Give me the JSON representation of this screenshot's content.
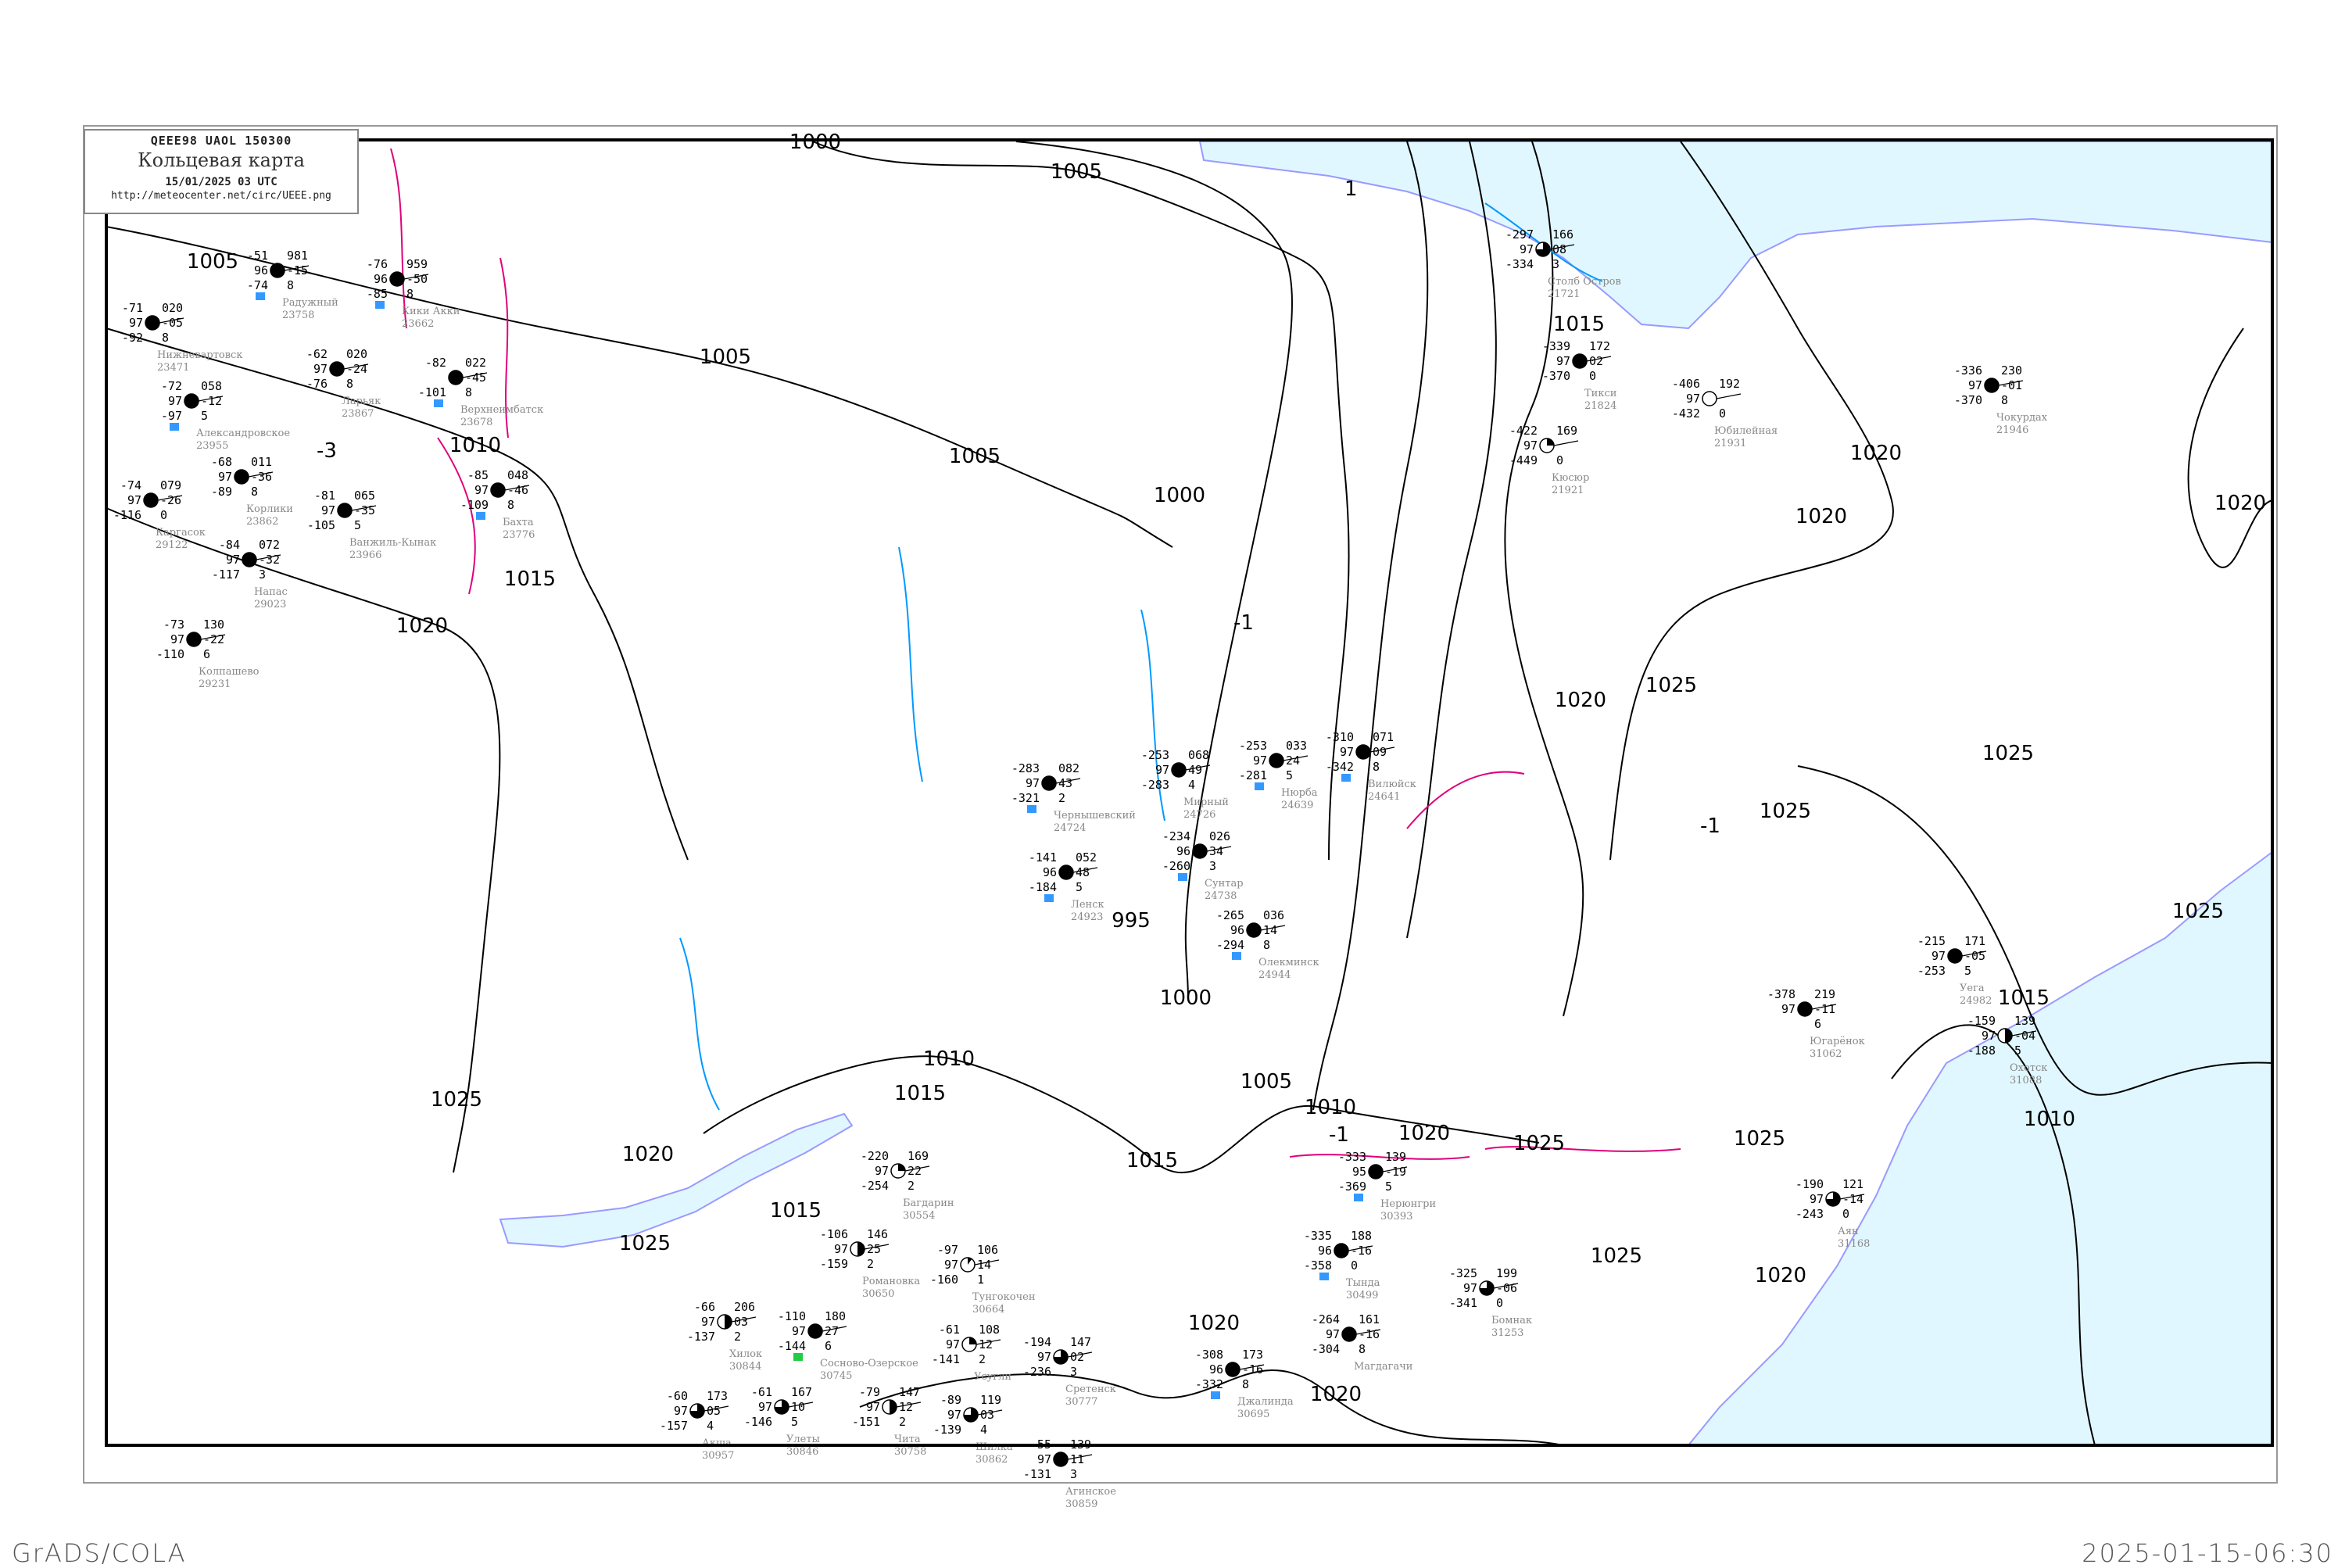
{
  "header": {
    "code_line": "QEEE98  UAOL  150300",
    "title": "Кольцевая карта",
    "datetime": "15/01/2025 03 UTC",
    "url": "http://meteocenter.net/circ/UEEE.png"
  },
  "footer": {
    "left": "GrADS/COLA",
    "right": "2025-01-15-06:30"
  },
  "colors": {
    "sea": "#e0f7ff",
    "coast": "#9a9aff",
    "isobar": "#000000",
    "isotherm_negative": "#e0007a",
    "isotherm_cold": "#0099ff",
    "station_marker": "#3399ff",
    "frame": "#000000"
  },
  "isobar_labels": [
    "1000",
    "1005",
    "1005",
    "1005",
    "1005",
    "1000",
    "1010",
    "1015",
    "1020",
    "995",
    "1000",
    "1010",
    "1015",
    "1005",
    "1010",
    "1015",
    "1020",
    "1025",
    "1025",
    "1025",
    "1020",
    "1025",
    "1025",
    "1020",
    "1015",
    "1020",
    "1025",
    "1025",
    "1025",
    "1020",
    "1020",
    "1020",
    "1015",
    "1010",
    "1025",
    "1015",
    "1020",
    "1020"
  ],
  "isotherm_labels": [
    "-1",
    "-3",
    "-1",
    "-1",
    "1"
  ],
  "stations": [
    {
      "name": "Чернышевский",
      "index": "24724",
      "t": "-283",
      "vis": "97",
      "td": "-321",
      "p": "082",
      "dp": "43",
      "w": "2",
      "cover": 1,
      "marker": true
    },
    {
      "name": "Мирный",
      "index": "24726",
      "t": "-253",
      "vis": "97",
      "td": "-283",
      "p": "068",
      "dp": "49",
      "w": "4",
      "cover": 1,
      "marker": false
    },
    {
      "name": "Сунтар",
      "index": "24738",
      "t": "-234",
      "vis": "96",
      "td": "-260",
      "p": "026",
      "dp": "34",
      "w": "3",
      "cover": 1,
      "marker": true
    },
    {
      "name": "Нюрба",
      "index": "24639",
      "t": "-253",
      "vis": "97",
      "td": "-281",
      "p": "033",
      "dp": "24",
      "w": "5",
      "cover": 1,
      "marker": true
    },
    {
      "name": "Вилюйск",
      "index": "24641",
      "t": "-310",
      "vis": "97",
      "td": "-342",
      "p": "071",
      "dp": "09",
      "w": "8",
      "cover": 1,
      "marker": true
    },
    {
      "name": "Ленск",
      "index": "24923",
      "t": "-141",
      "vis": "96",
      "td": "-184",
      "p": "052",
      "dp": "48",
      "w": "5",
      "cover": 1,
      "marker": true
    },
    {
      "name": "Олекминск",
      "index": "24944",
      "t": "-265",
      "vis": "96",
      "td": "-294",
      "p": "036",
      "dp": "14",
      "w": "8",
      "cover": 1,
      "marker": true
    },
    {
      "name": "Столб Остров",
      "index": "21721",
      "t": "-297",
      "vis": "97",
      "td": "-334",
      "p": "166",
      "dp": "08",
      "w": "3",
      "cover": 0.75,
      "marker": false
    },
    {
      "name": "Тикси",
      "index": "21824",
      "t": "-339",
      "vis": "97",
      "td": "-370",
      "p": "172",
      "dp": "02",
      "w": "0",
      "cover": 1,
      "marker": false
    },
    {
      "name": "Кюсюр",
      "index": "21921",
      "t": "-422",
      "vis": "97",
      "td": "-449",
      "p": "169",
      "dp": "",
      "w": "0",
      "cover": 0.25,
      "marker": false
    },
    {
      "name": "Юбилейная",
      "index": "21931",
      "t": "-406",
      "vis": "97",
      "td": "-432",
      "p": "192",
      "dp": "",
      "w": "0",
      "cover": 0,
      "marker": false
    },
    {
      "name": "Чокурдах",
      "index": "21946",
      "t": "-336",
      "vis": "97",
      "td": "-370",
      "p": "230",
      "dp": "-01",
      "w": "8",
      "cover": 1,
      "marker": false
    },
    {
      "name": "Нерюнгри",
      "index": "30393",
      "t": "-333",
      "vis": "95",
      "td": "-369",
      "p": "139",
      "dp": "-19",
      "w": "5",
      "cover": 1,
      "marker": true
    },
    {
      "name": "Тында",
      "index": "30499",
      "t": "-335",
      "vis": "96",
      "td": "-358",
      "p": "188",
      "dp": "-16",
      "w": "0",
      "cover": 1,
      "marker": true
    },
    {
      "name": "Бомнак",
      "index": "31253",
      "t": "-325",
      "vis": "97",
      "td": "-341",
      "p": "199",
      "dp": "-06",
      "w": "0",
      "cover": 0.75,
      "marker": false
    },
    {
      "name": "Магдагачи",
      "index": "",
      "t": "-264",
      "vis": "97",
      "td": "-304",
      "p": "161",
      "dp": "-16",
      "w": "8",
      "cover": 1,
      "marker": false
    },
    {
      "name": "Джалинда",
      "index": "30695",
      "t": "-308",
      "vis": "96",
      "td": "-332",
      "p": "173",
      "dp": "-16",
      "w": "8",
      "cover": 1,
      "marker": true
    },
    {
      "name": "Уега",
      "index": "24982",
      "t": "-215",
      "vis": "97",
      "td": "-253",
      "p": "171",
      "dp": "-05",
      "w": "5",
      "cover": 1,
      "marker": false
    },
    {
      "name": "Охотск",
      "index": "31088",
      "t": "-159",
      "vis": "97",
      "td": "-188",
      "p": "139",
      "dp": "-04",
      "w": "5",
      "cover": 0.5,
      "marker": false
    },
    {
      "name": "Югарёнок",
      "index": "31062",
      "t": "-378",
      "vis": "97",
      "td": "",
      "p": "219",
      "dp": "-11",
      "w": "6",
      "cover": 1,
      "marker": false
    },
    {
      "name": "Аян",
      "index": "31168",
      "t": "-190",
      "vis": "97",
      "td": "-243",
      "p": "121",
      "dp": "-14",
      "w": "0",
      "cover": 0.75,
      "marker": false
    },
    {
      "name": "Радужный",
      "index": "23758",
      "t": "-51",
      "vis": "96",
      "td": "-74",
      "p": "981",
      "dp": "-15",
      "w": "8",
      "cover": 1,
      "marker": true
    },
    {
      "name": "Нижневартовск",
      "index": "23471",
      "t": "-71",
      "vis": "97",
      "td": "-92",
      "p": "020",
      "dp": "-05",
      "w": "8",
      "cover": 1,
      "marker": false
    },
    {
      "name": "Александровское",
      "index": "23955",
      "t": "-72",
      "vis": "97",
      "td": "-97",
      "p": "058",
      "dp": "-12",
      "w": "5",
      "cover": 1,
      "marker": true
    },
    {
      "name": "Ларьяк",
      "index": "23867",
      "t": "-62",
      "vis": "97",
      "td": "-76",
      "p": "020",
      "dp": "-24",
      "w": "8",
      "cover": 1,
      "marker": false
    },
    {
      "name": "Корлики",
      "index": "23862",
      "t": "-68",
      "vis": "97",
      "td": "-89",
      "p": "011",
      "dp": "-36",
      "w": "8",
      "cover": 1,
      "marker": false
    },
    {
      "name": "Кики Акки",
      "index": "23662",
      "t": "-76",
      "vis": "96",
      "td": "-85",
      "p": "959",
      "dp": "-50",
      "w": "8",
      "cover": 1,
      "marker": true
    },
    {
      "name": "Каргасок",
      "index": "29122",
      "t": "-74",
      "vis": "97",
      "td": "-116",
      "p": "079",
      "dp": "-26",
      "w": "0",
      "cover": 1,
      "marker": false
    },
    {
      "name": "Напас",
      "index": "29023",
      "t": "-84",
      "vis": "97",
      "td": "-117",
      "p": "072",
      "dp": "-32",
      "w": "3",
      "cover": 1,
      "marker": false
    },
    {
      "name": "Ванжиль-Кынак",
      "index": "23966",
      "t": "-81",
      "vis": "97",
      "td": "-105",
      "p": "065",
      "dp": "-35",
      "w": "5",
      "cover": 1,
      "marker": false
    },
    {
      "name": "Колпашево",
      "index": "29231",
      "t": "-73",
      "vis": "97",
      "td": "-110",
      "p": "130",
      "dp": "-22",
      "w": "6",
      "cover": 1,
      "marker": false
    },
    {
      "name": "Бахта",
      "index": "23776",
      "t": "-85",
      "vis": "97",
      "td": "-109",
      "p": "048",
      "dp": "-46",
      "w": "8",
      "cover": 1,
      "marker": true
    },
    {
      "name": "Верхнеимбатск",
      "index": "23678",
      "t": "-82",
      "vis": "",
      "td": "-101",
      "p": "022",
      "dp": "-45",
      "w": "8",
      "cover": 1,
      "marker": true
    },
    {
      "name": "Романовка",
      "index": "30650",
      "t": "-106",
      "vis": "97",
      "td": "-159",
      "p": "146",
      "dp": "25",
      "w": "2",
      "cover": 0.5,
      "marker": false
    },
    {
      "name": "Сосново-Озерское",
      "index": "30745",
      "t": "-110",
      "vis": "97",
      "td": "-144",
      "p": "180",
      "dp": "27",
      "w": "6",
      "cover": 1,
      "marker": false,
      "green": true
    },
    {
      "name": "Багдарин",
      "index": "30554",
      "t": "-220",
      "vis": "97",
      "td": "-254",
      "p": "169",
      "dp": "22",
      "w": "2",
      "cover": 0.25,
      "marker": false
    },
    {
      "name": "Тунгокочен",
      "index": "30664",
      "t": "-97",
      "vis": "97",
      "td": "-160",
      "p": "106",
      "dp": "14",
      "w": "1",
      "cover": 0.1,
      "marker": false
    },
    {
      "name": "Чита",
      "index": "30758",
      "t": "-79",
      "vis": "97",
      "td": "-151",
      "p": "147",
      "dp": "12",
      "w": "2",
      "cover": 0.5,
      "marker": false
    },
    {
      "name": "Усугли",
      "index": "",
      "t": "-61",
      "vis": "97",
      "td": "-141",
      "p": "108",
      "dp": "12",
      "w": "2",
      "cover": 0.25,
      "marker": false
    },
    {
      "name": "Хилок",
      "index": "30844",
      "t": "-66",
      "vis": "97",
      "td": "-137",
      "p": "206",
      "dp": "03",
      "w": "2",
      "cover": 0.5,
      "marker": false
    },
    {
      "name": "Улеты",
      "index": "30846",
      "t": "-61",
      "vis": "97",
      "td": "-146",
      "p": "167",
      "dp": "10",
      "w": "5",
      "cover": 0.75,
      "marker": false
    },
    {
      "name": "Шилка",
      "index": "30862",
      "t": "-89",
      "vis": "97",
      "td": "-139",
      "p": "119",
      "dp": "03",
      "w": "4",
      "cover": 0.75,
      "marker": false
    },
    {
      "name": "Сретенск",
      "index": "30777",
      "t": "-194",
      "vis": "97",
      "td": "-236",
      "p": "147",
      "dp": "02",
      "w": "3",
      "cover": 0.75,
      "marker": false
    },
    {
      "name": "Агинское",
      "index": "30859",
      "t": "-55",
      "vis": "97",
      "td": "-131",
      "p": "139",
      "dp": "11",
      "w": "3",
      "cover": 1,
      "marker": false
    },
    {
      "name": "Акша",
      "index": "30957",
      "t": "-60",
      "vis": "97",
      "td": "-157",
      "p": "173",
      "dp": "05",
      "w": "4",
      "cover": 0.75,
      "marker": false
    }
  ]
}
